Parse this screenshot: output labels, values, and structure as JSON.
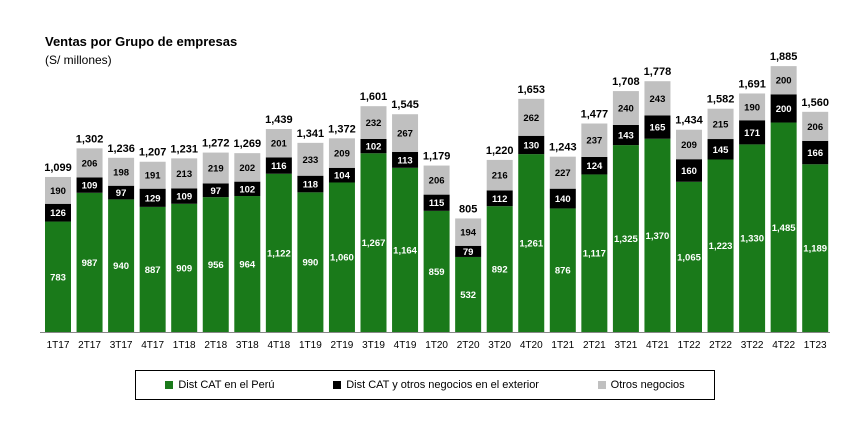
{
  "chart_data": {
    "type": "bar",
    "stacked": true,
    "title": "Ventas por Grupo de empresas",
    "subtitle": "(S/ millones)",
    "categories": [
      "1T17",
      "2T17",
      "3T17",
      "4T17",
      "1T18",
      "2T18",
      "3T18",
      "4T18",
      "1T19",
      "2T19",
      "3T19",
      "4T19",
      "1T20",
      "2T20",
      "3T20",
      "4T20",
      "1T21",
      "2T21",
      "3T21",
      "4T21",
      "1T22",
      "2T22",
      "3T22",
      "4T22",
      "1T23"
    ],
    "series": [
      {
        "name": "Dist CAT en el Perú",
        "color": "#1a7a1a",
        "values": [
          783,
          987,
          940,
          887,
          909,
          956,
          964,
          1122,
          990,
          1060,
          1267,
          1164,
          859,
          532,
          892,
          1261,
          876,
          1117,
          1325,
          1370,
          1065,
          1223,
          1330,
          1485,
          1189
        ]
      },
      {
        "name": "Dist CAT y otros negocios en el exterior",
        "color": "#000000",
        "values": [
          126,
          109,
          97,
          129,
          109,
          97,
          102,
          116,
          118,
          104,
          102,
          113,
          115,
          79,
          112,
          130,
          140,
          124,
          143,
          165,
          160,
          145,
          171,
          200,
          166
        ]
      },
      {
        "name": "Otros negocios",
        "color": "#c0c0c0",
        "values": [
          190,
          206,
          198,
          191,
          213,
          219,
          202,
          201,
          233,
          209,
          232,
          267,
          206,
          194,
          216,
          262,
          227,
          237,
          240,
          243,
          209,
          215,
          190,
          200,
          206
        ]
      }
    ],
    "series_labels": [
      [
        "783",
        "987",
        "940",
        "887",
        "909",
        "956",
        "964",
        "1,122",
        "990",
        "1,060",
        "1,267",
        "1,164",
        "859",
        "532",
        "892",
        "1,261",
        "876",
        "1,117",
        "1,325",
        "1,370",
        "1,065",
        "1,223",
        "1,330",
        "1,485",
        "1,189"
      ],
      [
        "126",
        "109",
        "97",
        "129",
        "109",
        "97",
        "102",
        "116",
        "118",
        "104",
        "102",
        "113",
        "115",
        "79",
        "112",
        "130",
        "140",
        "124",
        "143",
        "165",
        "160",
        "145",
        "171",
        "200",
        "166"
      ],
      [
        "190",
        "206",
        "198",
        "191",
        "213",
        "219",
        "202",
        "201",
        "233",
        "209",
        "232",
        "267",
        "206",
        "194",
        "216",
        "262",
        "227",
        "237",
        "240",
        "243",
        "209",
        "215",
        "190",
        "200",
        "206"
      ]
    ],
    "totals": [
      1099,
      1302,
      1236,
      1207,
      1231,
      1272,
      1269,
      1439,
      1341,
      1372,
      1601,
      1545,
      1179,
      805,
      1220,
      1653,
      1243,
      1477,
      1708,
      1778,
      1434,
      1582,
      1691,
      1885,
      1560
    ],
    "total_labels": [
      "1,099",
      "1,302",
      "1,236",
      "1,207",
      "1,231",
      "1,272",
      "1,269",
      "1,439",
      "1,341",
      "1,372",
      "1,601",
      "1,545",
      "1,179",
      "805",
      "1,220",
      "1,653",
      "1,243",
      "1,477",
      "1,708",
      "1,778",
      "1,434",
      "1,582",
      "1,691",
      "1,885",
      "1,560"
    ],
    "ylim": [
      0,
      1900
    ],
    "grid": false,
    "legend_position": "bottom"
  }
}
